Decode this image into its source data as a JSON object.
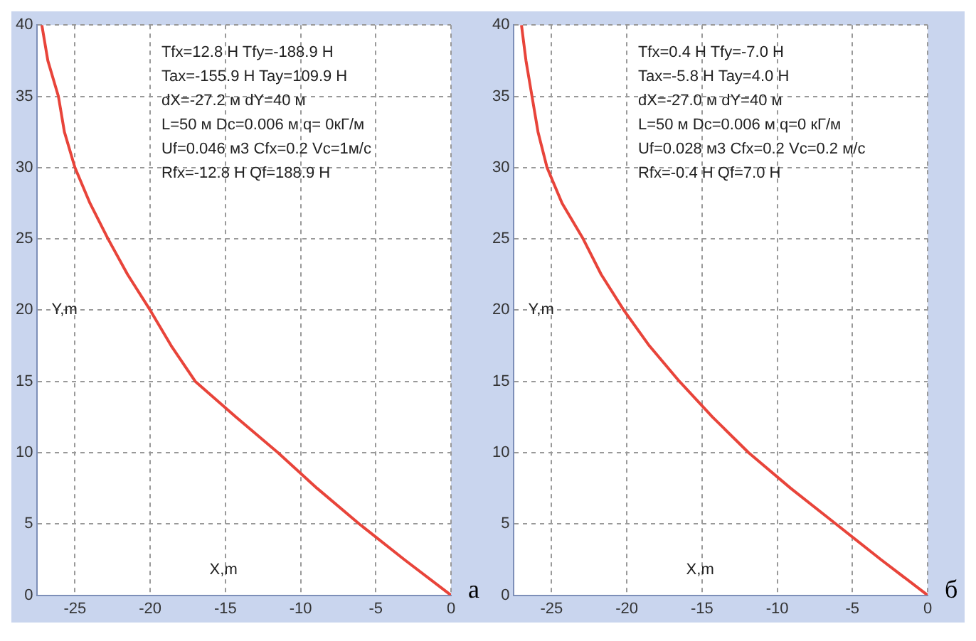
{
  "chart_data": [
    {
      "type": "line",
      "title": "а",
      "xlabel": "X,m",
      "ylabel": "Y,m",
      "x": [
        -27.2,
        -26.8,
        -26.1,
        -25.7,
        -25.0,
        -24.0,
        -22.8,
        -21.5,
        -20.0,
        -18.6,
        -17.0,
        -14.3,
        -11.5,
        -8.9,
        -6.1,
        -3.1,
        0
      ],
      "series": [
        {
          "color": "#e8443a",
          "values": [
            40,
            37.5,
            35,
            32.5,
            30,
            27.5,
            25,
            22.5,
            20,
            17.5,
            15,
            12.5,
            10,
            7.5,
            5,
            2.5,
            0
          ]
        }
      ],
      "xlim": [
        -27.5,
        0
      ],
      "xticks": [
        -25,
        -20,
        -15,
        -10,
        -5,
        0
      ],
      "ylim": [
        0,
        40
      ],
      "yticks": [
        0,
        5,
        10,
        15,
        20,
        25,
        30,
        35,
        40
      ],
      "grid": true,
      "marker": "none",
      "line_style": "solid",
      "annotations": [
        "Tfx=12.8 H Tfy=-188.9 H",
        "Tax=-155.9 H Tay=109.9 H",
        "dX=-27.2 м dY=40 м",
        "L=50 м Dc=0.006 м q= 0кГ/м",
        "Uf=0.046 м3 Cfx=0.2 Vc=1м/c",
        "Rfx=-12.8 H Qf=188.9 H"
      ]
    },
    {
      "type": "line",
      "title": "б",
      "xlabel": "X,m",
      "ylabel": "Y,m",
      "x": [
        -27.0,
        -26.7,
        -26.3,
        -25.9,
        -25.3,
        -24.3,
        -22.9,
        -21.7,
        -20.2,
        -18.5,
        -16.5,
        -14.3,
        -11.9,
        -9.1,
        -6.1,
        -3.1,
        0
      ],
      "series": [
        {
          "color": "#e8443a",
          "values": [
            40,
            37.5,
            35,
            32.5,
            30,
            27.5,
            25,
            22.5,
            20,
            17.5,
            15,
            12.5,
            10,
            7.5,
            5,
            2.5,
            0
          ]
        }
      ],
      "xlim": [
        -27.5,
        0
      ],
      "xticks": [
        -25,
        -20,
        -15,
        -10,
        -5,
        0
      ],
      "ylim": [
        0,
        40
      ],
      "yticks": [
        0,
        5,
        10,
        15,
        20,
        25,
        30,
        35,
        40
      ],
      "grid": true,
      "marker": "none",
      "line_style": "solid",
      "annotations": [
        "Tfx=0.4 H Tfy=-7.0 H",
        "Tax=-5.8 H Tay=4.0 H",
        "dX=-27.0 м dY=40 м",
        "L=50 м Dc=0.006 м q=0 кГ/м",
        "Uf=0.028 м3 Cfx=0.2 Vc=0.2 м/c",
        "Rfx=-0.4 H Qf=7.0 H"
      ]
    }
  ]
}
